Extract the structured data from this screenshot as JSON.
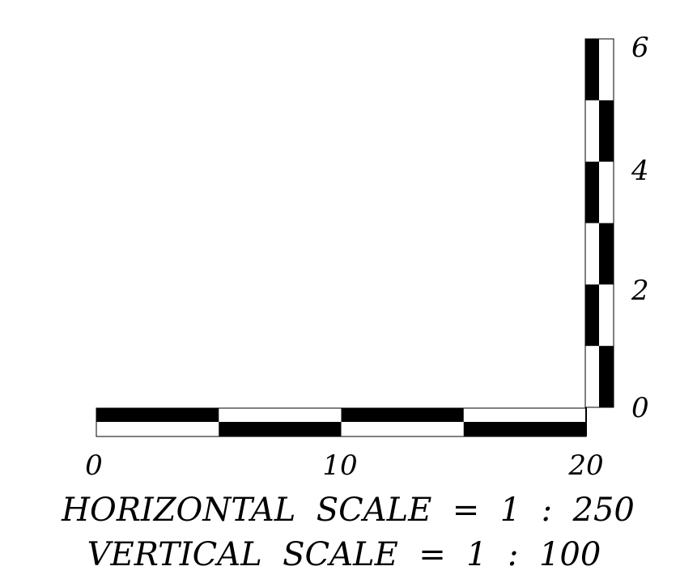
{
  "horizontal_scale": {
    "ticks": [
      "0",
      "10",
      "20"
    ],
    "range": [
      0,
      20
    ],
    "segment_length": 5,
    "caption": "HORIZONTAL  SCALE  =  1  :  250"
  },
  "vertical_scale": {
    "ticks": [
      "0",
      "2",
      "4",
      "6"
    ],
    "range": [
      0,
      6
    ],
    "segment_length": 1,
    "caption": "VERTICAL  SCALE  =  1  :  100"
  },
  "colors": {
    "fill": "#000000",
    "background": "#ffffff"
  }
}
